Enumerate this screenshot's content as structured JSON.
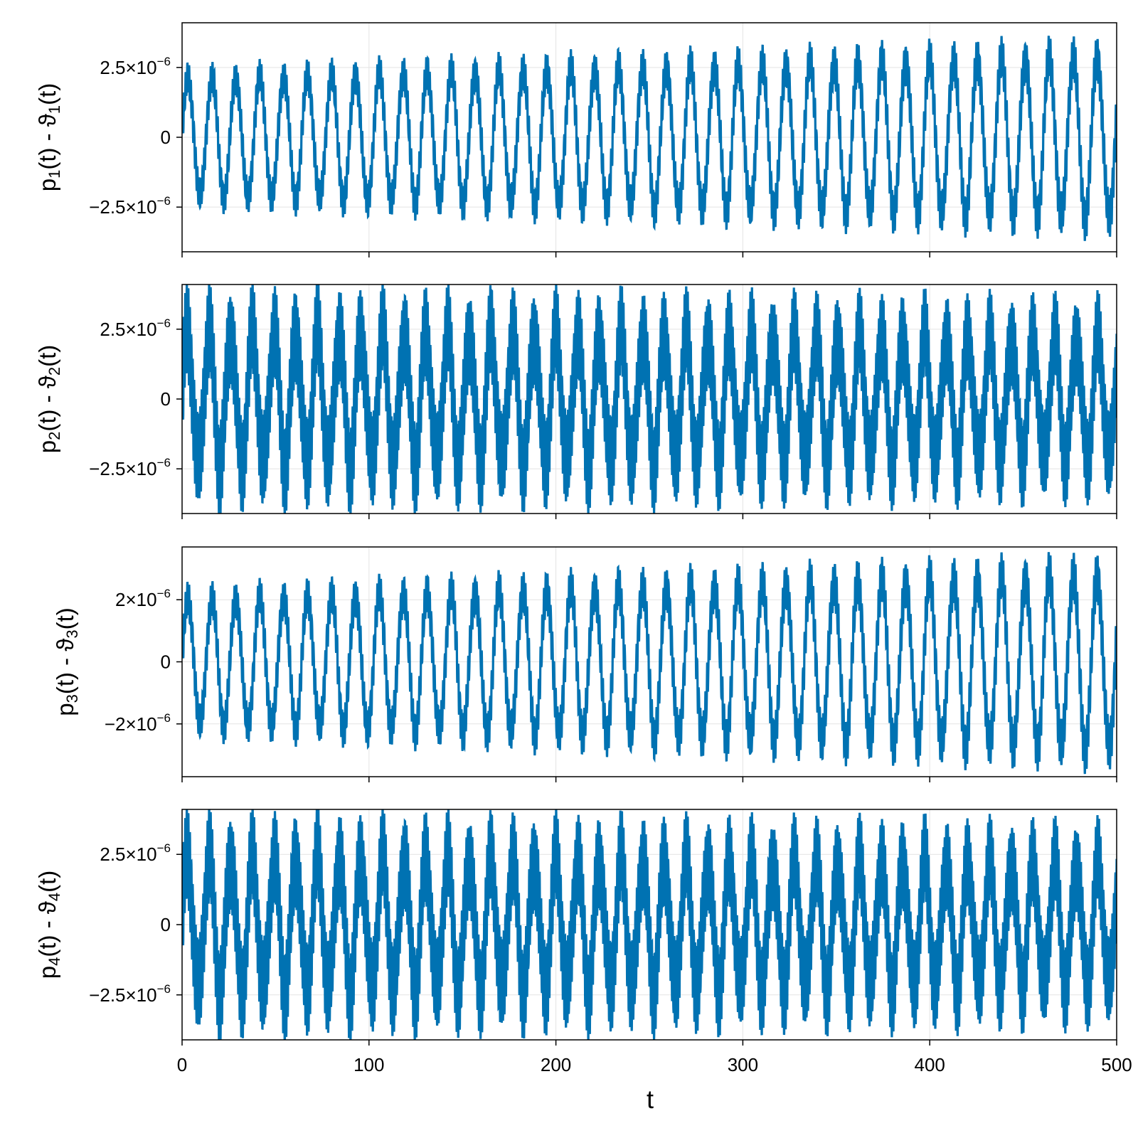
{
  "chart_data": {
    "type": "line",
    "x_label": "t",
    "x_ticks": [
      0,
      100,
      200,
      300,
      400,
      500
    ],
    "xlim": [
      0,
      500
    ],
    "grid": true,
    "color": "#0072b2",
    "panels": [
      {
        "ylabel_base": "p",
        "ylabel_theta": "ϑ",
        "subscript": "1",
        "ylim": [
          -4.1e-06,
          4.1e-06
        ],
        "y_ticks": [
          {
            "value": 2.5e-06,
            "mant": "2.5×10",
            "exp": "−6"
          },
          {
            "value": 0,
            "mant": "0",
            "exp": ""
          },
          {
            "value": -2.5e-06,
            "mant": "−2.5×10",
            "exp": "−6"
          }
        ],
        "signal": {
          "slow_period": 12.8,
          "fast_period": 0.9,
          "slow_amp_start": 2.1e-06,
          "slow_amp_end": 2.9e-06,
          "fast_amp_start": 5e-07,
          "fast_amp_end": 7e-07
        }
      },
      {
        "ylabel_base": "p",
        "ylabel_theta": "ϑ",
        "subscript": "2",
        "ylim": [
          -4.1e-06,
          4.1e-06
        ],
        "y_ticks": [
          {
            "value": 2.5e-06,
            "mant": "2.5×10",
            "exp": "−6"
          },
          {
            "value": 0,
            "mant": "0",
            "exp": ""
          },
          {
            "value": -2.5e-06,
            "mant": "−2.5×10",
            "exp": "−6"
          }
        ],
        "signal": {
          "slow_period": 11.6,
          "fast_period": 0.8,
          "slow_amp_start": 2.4e-06,
          "slow_amp_end": 2.2e-06,
          "fast_amp_start": 1.5e-06,
          "fast_amp_end": 1.4e-06
        }
      },
      {
        "ylabel_base": "p",
        "ylabel_theta": "ϑ",
        "subscript": "3",
        "ylim": [
          -3.7e-06,
          3.7e-06
        ],
        "y_ticks": [
          {
            "value": 2e-06,
            "mant": "2×10",
            "exp": "−6"
          },
          {
            "value": 0,
            "mant": "0",
            "exp": ""
          },
          {
            "value": -2e-06,
            "mant": "−2×10",
            "exp": "−6"
          }
        ],
        "signal": {
          "slow_period": 12.8,
          "fast_period": 0.9,
          "slow_amp_start": 2e-06,
          "slow_amp_end": 2.8e-06,
          "fast_amp_start": 5e-07,
          "fast_amp_end": 7e-07
        }
      },
      {
        "ylabel_base": "p",
        "ylabel_theta": "ϑ",
        "subscript": "4",
        "ylim": [
          -4.1e-06,
          4.1e-06
        ],
        "y_ticks": [
          {
            "value": 2.5e-06,
            "mant": "2.5×10",
            "exp": "−6"
          },
          {
            "value": 0,
            "mant": "0",
            "exp": ""
          },
          {
            "value": -2.5e-06,
            "mant": "−2.5×10",
            "exp": "−6"
          }
        ],
        "signal": {
          "slow_period": 11.6,
          "fast_period": 0.8,
          "slow_amp_start": 2.4e-06,
          "slow_amp_end": 2.2e-06,
          "fast_amp_start": 1.5e-06,
          "fast_amp_end": 1.4e-06
        }
      }
    ]
  }
}
